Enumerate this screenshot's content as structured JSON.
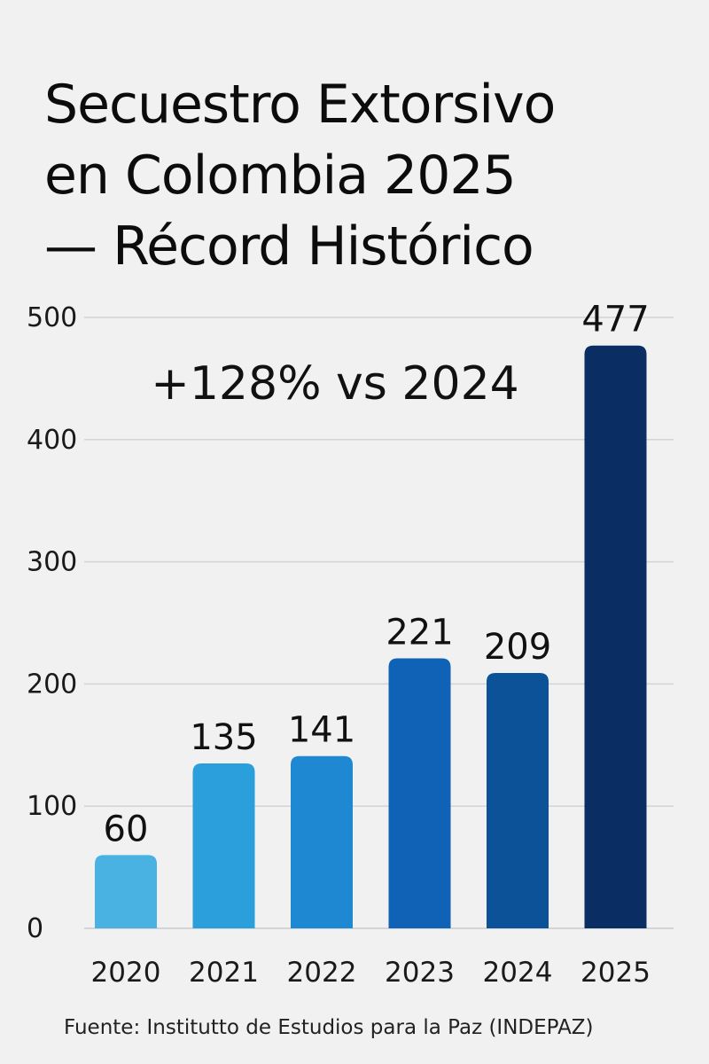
{
  "title_lines": [
    "Secuestro Extorsivo",
    "en Colombia 2025",
    "— Récord Histórico"
  ],
  "annotation": "+128% vs 2024",
  "source": "Fuente: Institutto de Estudios para la Paz (INDEPAZ)",
  "colors": {
    "background": "#f1f1f2",
    "gridline": "#d4d4d8",
    "axis_text": "#1a1a1a",
    "bars": [
      "#49b2e3",
      "#2b9fdc",
      "#1f88d2",
      "#0f62b5",
      "#0c5299",
      "#0a2e63"
    ]
  },
  "chart_data": {
    "type": "bar",
    "categories": [
      "2020",
      "2021",
      "2022",
      "2023",
      "2024",
      "2025"
    ],
    "values": [
      60,
      135,
      141,
      221,
      209,
      477
    ],
    "data_labels": [
      "60",
      "135",
      "141",
      "221",
      "209",
      "477"
    ],
    "y_ticks": [
      0,
      100,
      200,
      300,
      400,
      500
    ],
    "ylim": [
      0,
      500
    ],
    "grid": true,
    "legend": "none",
    "annotations": [
      "+128% vs 2024"
    ]
  }
}
